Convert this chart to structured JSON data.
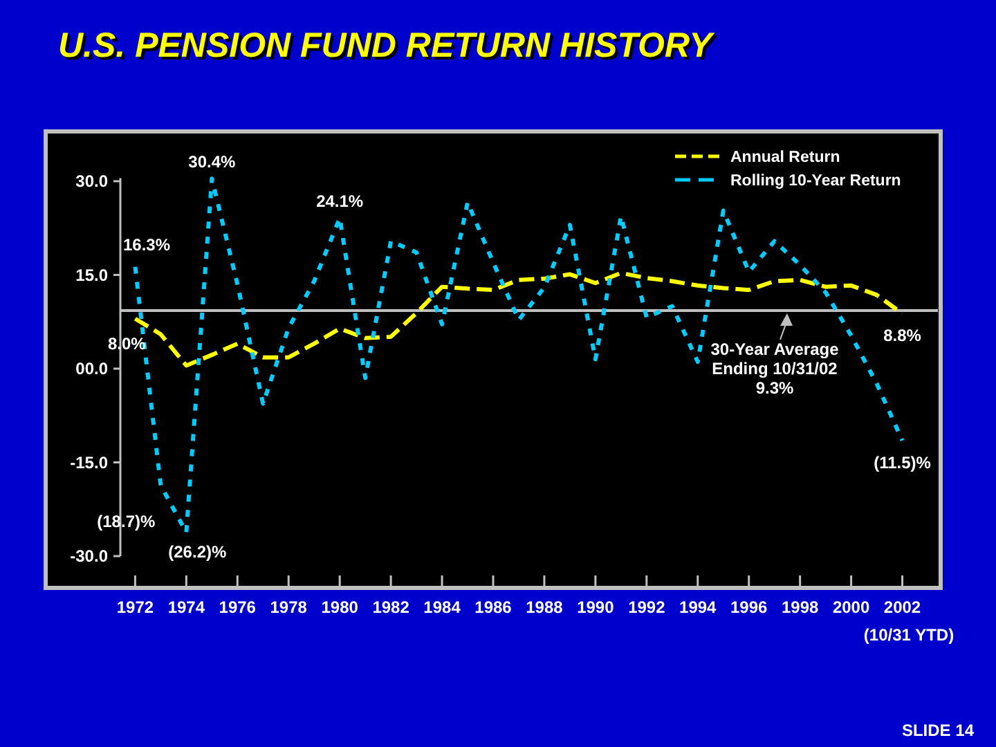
{
  "chart_data": {
    "type": "line",
    "title": "U.S. PENSION FUND RETURN HISTORY",
    "x": [
      1972,
      1973,
      1974,
      1975,
      1976,
      1977,
      1978,
      1979,
      1980,
      1981,
      1982,
      1983,
      1984,
      1985,
      1986,
      1987,
      1988,
      1989,
      1990,
      1991,
      1992,
      1993,
      1994,
      1995,
      1996,
      1997,
      1998,
      1999,
      2000,
      2001,
      2002
    ],
    "series": [
      {
        "name": "Annual Return",
        "color": "#ffff00",
        "line_style": "dashed",
        "values": [
          8.0,
          5.5,
          0.5,
          2.2,
          4.0,
          1.8,
          1.8,
          4.0,
          6.4,
          4.9,
          5.1,
          8.9,
          13.1,
          12.8,
          12.6,
          14.2,
          14.4,
          15.1,
          13.7,
          15.3,
          14.5,
          14.0,
          13.3,
          12.9,
          12.6,
          14.0,
          14.2,
          13.1,
          13.3,
          11.8,
          8.8
        ]
      },
      {
        "name": "Rolling 10-Year Return",
        "color": "#00ccff",
        "line_style": "dotted",
        "values": [
          16.3,
          -18.7,
          -26.2,
          30.4,
          13.5,
          -5.6,
          6.5,
          14.0,
          24.1,
          -1.5,
          20.4,
          18.6,
          7.1,
          26.6,
          17.0,
          7.8,
          13.0,
          23.0,
          1.5,
          24.4,
          8.2,
          10.0,
          1.1,
          25.3,
          15.5,
          20.4,
          16.6,
          12.2,
          5.3,
          -2.4,
          -11.5
        ]
      }
    ],
    "xlim": [
      1968.5,
      2003.5
    ],
    "xticks": [
      1972,
      1974,
      1976,
      1978,
      1980,
      1982,
      1984,
      1986,
      1988,
      1990,
      1992,
      1994,
      1996,
      1998,
      2000,
      2002
    ],
    "ylim": [
      -30,
      30.5
    ],
    "yticks": [
      {
        "value": 30,
        "label": "30.0"
      },
      {
        "value": 15,
        "label": "15.0"
      },
      {
        "value": 0,
        "label": "00.0"
      },
      {
        "value": -15,
        "label": "-15.0"
      },
      {
        "value": -30,
        "label": "-30.0"
      }
    ],
    "ref_lines": [
      {
        "axis": "y",
        "value": 9.3,
        "label": "30-Year Average\nEnding 10/31/02\n9.3%",
        "color": "#c0c0c0"
      }
    ],
    "legend": "top right",
    "grid": false,
    "annotations": [
      {
        "text": "16.3%",
        "x": 1972,
        "y": 16.3
      },
      {
        "text": "8.0%",
        "x": 1972,
        "y": 8.0
      },
      {
        "text": "(18.7)%",
        "x": 1973,
        "y": -18.7
      },
      {
        "text": "(26.2)%",
        "x": 1974,
        "y": -26.2
      },
      {
        "text": "30.4%",
        "x": 1975,
        "y": 30.4
      },
      {
        "text": "24.1%",
        "x": 1980,
        "y": 24.1
      },
      {
        "text": "8.8%",
        "x": 2002,
        "y": 8.8
      },
      {
        "text": "(11.5)%",
        "x": 2002,
        "y": -11.5
      },
      "(10/31 YTD)",
      "SLIDE 14"
    ]
  }
}
